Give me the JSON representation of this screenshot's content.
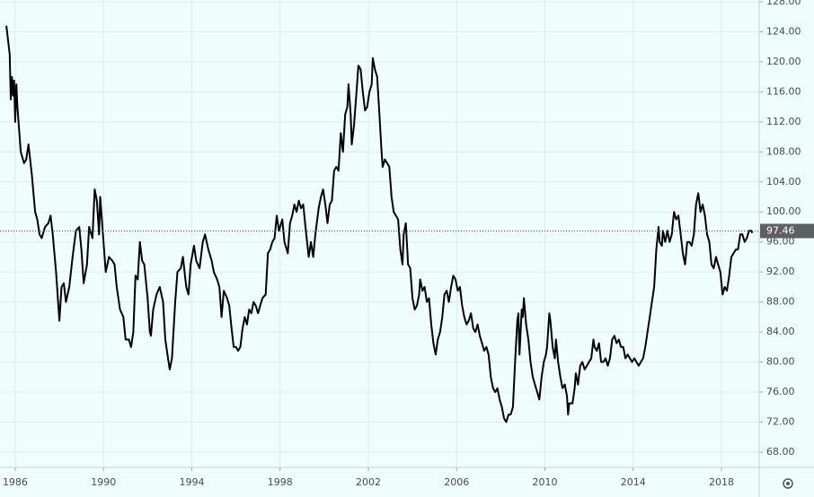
{
  "chart_data": {
    "type": "line",
    "x": [
      1985.6,
      1985.75,
      1985.8,
      1985.85,
      1985.9,
      1985.95,
      1986.0,
      1986.05,
      1986.1,
      1986.25,
      1986.4,
      1986.5,
      1986.6,
      1986.75,
      1986.9,
      1987.0,
      1987.1,
      1987.2,
      1987.35,
      1987.5,
      1987.6,
      1987.7,
      1987.85,
      1988.0,
      1988.1,
      1988.2,
      1988.3,
      1988.45,
      1988.6,
      1988.75,
      1988.9,
      1989.0,
      1989.1,
      1989.25,
      1989.35,
      1989.5,
      1989.6,
      1989.7,
      1989.8,
      1989.85,
      1989.95,
      1990.0,
      1990.1,
      1990.25,
      1990.4,
      1990.5,
      1990.6,
      1990.75,
      1990.9,
      1991.0,
      1991.15,
      1991.25,
      1991.35,
      1991.45,
      1991.55,
      1991.65,
      1991.75,
      1991.85,
      1992.0,
      1992.1,
      1992.15,
      1992.25,
      1992.4,
      1992.55,
      1992.7,
      1992.8,
      1992.9,
      1993.0,
      1993.1,
      1993.25,
      1993.35,
      1993.5,
      1993.6,
      1993.75,
      1993.85,
      1993.95,
      1994.1,
      1994.2,
      1994.35,
      1994.5,
      1994.6,
      1994.75,
      1994.9,
      1995.0,
      1995.15,
      1995.25,
      1995.35,
      1995.45,
      1995.6,
      1995.7,
      1995.8,
      1995.9,
      1996.0,
      1996.1,
      1996.2,
      1996.3,
      1996.4,
      1996.5,
      1996.6,
      1996.7,
      1996.8,
      1996.9,
      1997.0,
      1997.1,
      1997.2,
      1997.35,
      1997.45,
      1997.55,
      1997.65,
      1997.75,
      1997.85,
      1997.95,
      1998.1,
      1998.2,
      1998.35,
      1998.45,
      1998.55,
      1998.65,
      1998.75,
      1998.85,
      1998.95,
      1999.05,
      1999.15,
      1999.3,
      1999.4,
      1999.5,
      1999.6,
      1999.75,
      1999.85,
      1999.95,
      2000.05,
      2000.15,
      2000.25,
      2000.35,
      2000.45,
      2000.55,
      2000.65,
      2000.75,
      2000.85,
      2000.95,
      2001.05,
      2001.1,
      2001.2,
      2001.25,
      2001.35,
      2001.45,
      2001.55,
      2001.65,
      2001.75,
      2001.85,
      2001.95,
      2002.05,
      2002.15,
      2002.2,
      2002.3,
      2002.4,
      2002.5,
      2002.6,
      2002.65,
      2002.75,
      2002.85,
      2002.95,
      2003.05,
      2003.15,
      2003.25,
      2003.35,
      2003.45,
      2003.55,
      2003.6,
      2003.7,
      2003.8,
      2003.9,
      2004.0,
      2004.1,
      2004.2,
      2004.3,
      2004.35,
      2004.45,
      2004.55,
      2004.65,
      2004.75,
      2004.85,
      2004.95,
      2005.05,
      2005.15,
      2005.25,
      2005.35,
      2005.45,
      2005.55,
      2005.65,
      2005.75,
      2005.85,
      2005.95,
      2006.05,
      2006.15,
      2006.25,
      2006.35,
      2006.45,
      2006.55,
      2006.65,
      2006.75,
      2006.85,
      2006.95,
      2007.05,
      2007.15,
      2007.25,
      2007.35,
      2007.45,
      2007.55,
      2007.65,
      2007.75,
      2007.85,
      2007.95,
      2008.05,
      2008.15,
      2008.25,
      2008.35,
      2008.45,
      2008.55,
      2008.65,
      2008.75,
      2008.8,
      2008.85,
      2008.95,
      2009.0,
      2009.05,
      2009.15,
      2009.25,
      2009.35,
      2009.45,
      2009.55,
      2009.65,
      2009.75,
      2009.85,
      2009.95,
      2010.05,
      2010.1,
      2010.2,
      2010.25,
      2010.35,
      2010.45,
      2010.5,
      2010.6,
      2010.7,
      2010.8,
      2010.9,
      2011.0,
      2011.05,
      2011.1,
      2011.25,
      2011.35,
      2011.4,
      2011.5,
      2011.6,
      2011.7,
      2011.8,
      2011.9,
      2012.0,
      2012.1,
      2012.2,
      2012.25,
      2012.35,
      2012.45,
      2012.55,
      2012.65,
      2012.75,
      2012.85,
      2012.95,
      2013.05,
      2013.15,
      2013.25,
      2013.35,
      2013.45,
      2013.55,
      2013.65,
      2013.75,
      2013.85,
      2013.95,
      2014.05,
      2014.15,
      2014.25,
      2014.35,
      2014.45,
      2014.55,
      2014.65,
      2014.75,
      2014.85,
      2014.95,
      2015.05,
      2015.15,
      2015.2,
      2015.3,
      2015.35,
      2015.45,
      2015.55,
      2015.65,
      2015.75,
      2015.85,
      2015.95,
      2016.05,
      2016.15,
      2016.25,
      2016.35,
      2016.45,
      2016.55,
      2016.65,
      2016.75,
      2016.85,
      2016.95,
      2017.05,
      2017.15,
      2017.25,
      2017.35,
      2017.45,
      2017.55,
      2017.65,
      2017.75,
      2017.85,
      2017.95,
      2018.05,
      2018.15,
      2018.25,
      2018.35,
      2018.45,
      2018.55,
      2018.65,
      2018.75,
      2018.85,
      2018.95,
      2019.05,
      2019.15,
      2019.25,
      2019.35,
      2019.4
    ],
    "series": [
      {
        "color": "#000000",
        "values": [
          124.8,
          121,
          115,
          118,
          115.5,
          117.5,
          112,
          117,
          114,
          108,
          106.5,
          107,
          109,
          105,
          100,
          99,
          97,
          96.5,
          98,
          98.5,
          99.5,
          97,
          92,
          85.5,
          90,
          90.5,
          88,
          90,
          94,
          97.5,
          98,
          95,
          90.5,
          93,
          98,
          96.5,
          103,
          101.5,
          97,
          102,
          98,
          96,
          92,
          94,
          93.5,
          93,
          90,
          87,
          86,
          83,
          83,
          82,
          84,
          91.5,
          91,
          96,
          93.5,
          93,
          88.5,
          84,
          83.5,
          87,
          89,
          90,
          88,
          83,
          81,
          79,
          80.5,
          88,
          92,
          92.5,
          94,
          90,
          89,
          93,
          95.5,
          93.5,
          92.5,
          96,
          97,
          95,
          93.5,
          92,
          91,
          90,
          86,
          89.5,
          88.5,
          87.5,
          84.5,
          82,
          82,
          81.5,
          82,
          84.5,
          86,
          85,
          87,
          86.5,
          88,
          87.5,
          86.5,
          87.5,
          88.5,
          89,
          94.5,
          95,
          96,
          96.5,
          99.5,
          97.5,
          99,
          96,
          94.5,
          98.5,
          99.5,
          101,
          100,
          101.5,
          100.5,
          101,
          98,
          94,
          96,
          94,
          97,
          100.5,
          102,
          103,
          101,
          98.5,
          101,
          101.5,
          105.5,
          106,
          105.5,
          110.5,
          108,
          113,
          114,
          117,
          113,
          109,
          111.5,
          115.5,
          119.5,
          119,
          116,
          113.5,
          114,
          116,
          117,
          120.5,
          119,
          118,
          113,
          108,
          106,
          107,
          106.5,
          106,
          102,
          100,
          99.5,
          99,
          95,
          93,
          97,
          98.5,
          93,
          92.5,
          88.5,
          87,
          87.5,
          89,
          91,
          89.5,
          90,
          88,
          88.5,
          85,
          82.5,
          81,
          83,
          84,
          86,
          89,
          89.5,
          88,
          90,
          91.5,
          91,
          89.5,
          90,
          87.5,
          86,
          85,
          85.5,
          86.5,
          84.5,
          84,
          85,
          83.5,
          82.5,
          81.5,
          82,
          81,
          78,
          76.5,
          76,
          76.5,
          75,
          74,
          72.5,
          72,
          73,
          73,
          74,
          80,
          85.5,
          86.5,
          81,
          87,
          86,
          88.5,
          85,
          83,
          80,
          78,
          77,
          76,
          75,
          78,
          80,
          81,
          82,
          86.5,
          85.5,
          82,
          80.5,
          83,
          80,
          78,
          76.5,
          77,
          75.5,
          73,
          74.5,
          74.5,
          76.5,
          78.5,
          77,
          79.5,
          80,
          79,
          79.5,
          80,
          80.5,
          83,
          82,
          81.5,
          82.5,
          80,
          80,
          80.5,
          79.5,
          80.5,
          83,
          83.5,
          82.5,
          83,
          82,
          82,
          80.5,
          81,
          80.5,
          80,
          80.5,
          80,
          79.5,
          80,
          80.5,
          82,
          84,
          86,
          88,
          90,
          95,
          98,
          96,
          95.5,
          97.5,
          96,
          97.5,
          96,
          97,
          100,
          99,
          99.5,
          97,
          94.5,
          93,
          96,
          96,
          95.5,
          97,
          101,
          102.5,
          100,
          101,
          99.5,
          97,
          96,
          93,
          92.5,
          94,
          93,
          92,
          89,
          90,
          89.5,
          91.5,
          94,
          94.5,
          95,
          95,
          97,
          97,
          96,
          96.5,
          97.5,
          97.5,
          97.2
        ]
      }
    ],
    "last_price": 97.46,
    "xlim": [
      1985.31,
      2019.71
    ],
    "ylim": [
      65.96,
      128.24
    ],
    "xticks": [
      1986,
      1990,
      1994,
      1998,
      2002,
      2006,
      2010,
      2014,
      2018
    ],
    "yticks": [
      {
        "value": 68,
        "label": "68.00"
      },
      {
        "value": 72,
        "label": "72.00"
      },
      {
        "value": 76,
        "label": "76.00"
      },
      {
        "value": 80,
        "label": "80.00"
      },
      {
        "value": 84,
        "label": "84.00"
      },
      {
        "value": 88,
        "label": "88.00"
      },
      {
        "value": 92,
        "label": "92.00"
      },
      {
        "value": 96,
        "label": "96.00"
      },
      {
        "value": 100,
        "label": "100.00"
      },
      {
        "value": 104,
        "label": "104.00"
      },
      {
        "value": 108,
        "label": "108.00"
      },
      {
        "value": 112,
        "label": "112.00"
      },
      {
        "value": 116,
        "label": "116.00"
      },
      {
        "value": 120,
        "label": "120.00"
      },
      {
        "value": 124,
        "label": "124.00"
      },
      {
        "value": 128,
        "label": "128.00"
      }
    ],
    "grid": true
  }
}
